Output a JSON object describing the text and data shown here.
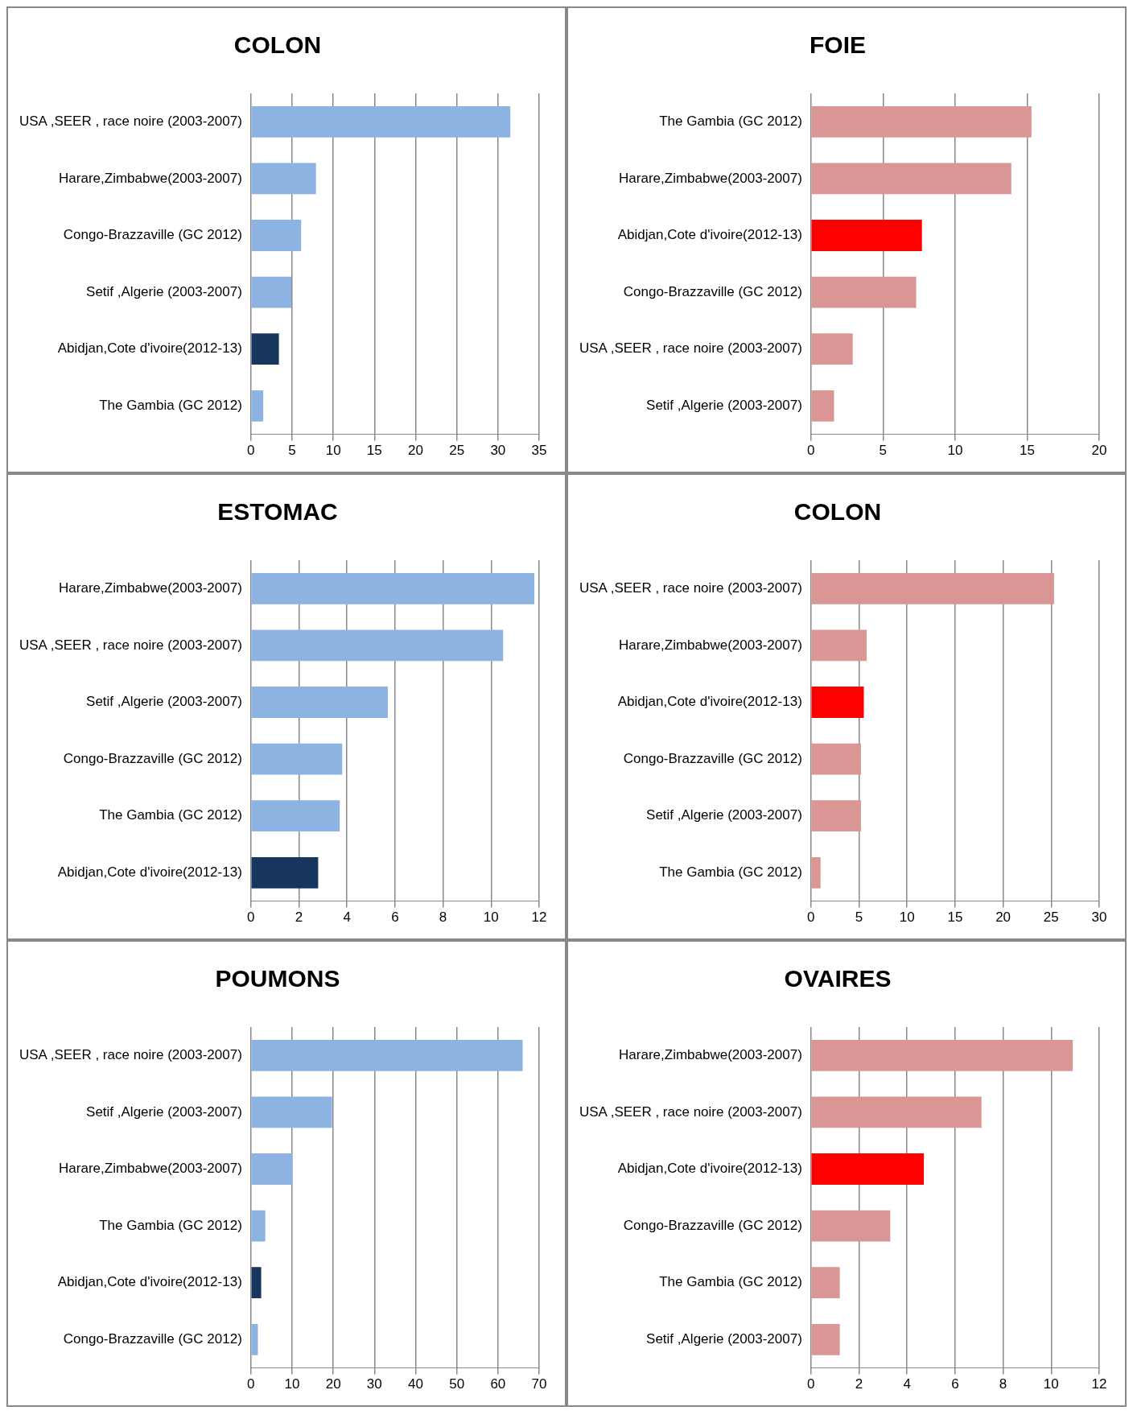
{
  "chart_data": [
    {
      "type": "bar",
      "title": "COLON",
      "orientation": "horizontal",
      "categories": [
        "USA ,SEER , race noire (2003-2007)",
        "Harare,Zimbabwe(2003-2007)",
        "Congo-Brazzaville (GC 2012)",
        "Setif ,Algerie (2003-2007)",
        "Abidjan,Cote d'ivoire(2012-13)",
        "The Gambia (GC 2012)"
      ],
      "values": [
        31.5,
        7.9,
        6.1,
        4.9,
        3.4,
        1.5
      ],
      "colors": [
        "#8db3e2",
        "#8db3e2",
        "#8db3e2",
        "#8db3e2",
        "#17365d",
        "#8db3e2"
      ],
      "xlim": [
        0,
        35
      ],
      "xticks": [
        0,
        5,
        10,
        15,
        20,
        25,
        30,
        35
      ],
      "grid": "x"
    },
    {
      "type": "bar",
      "title": "FOIE",
      "orientation": "horizontal",
      "categories": [
        "The Gambia (GC 2012)",
        "Harare,Zimbabwe(2003-2007)",
        "Abidjan,Cote d'ivoire(2012-13)",
        "Congo-Brazzaville (GC 2012)",
        "USA ,SEER , race noire (2003-2007)",
        "Setif ,Algerie (2003-2007)"
      ],
      "values": [
        15.3,
        13.9,
        7.7,
        7.3,
        2.9,
        1.6
      ],
      "colors": [
        "#d99694",
        "#d99694",
        "#ff0000",
        "#d99694",
        "#d99694",
        "#d99694"
      ],
      "xlim": [
        0,
        20
      ],
      "xticks": [
        0,
        5,
        10,
        15,
        20
      ],
      "grid": "x"
    },
    {
      "type": "bar",
      "title": "ESTOMAC",
      "orientation": "horizontal",
      "categories": [
        "Harare,Zimbabwe(2003-2007)",
        "USA ,SEER , race noire (2003-2007)",
        "Setif ,Algerie (2003-2007)",
        "Congo-Brazzaville (GC 2012)",
        "The Gambia (GC 2012)",
        "Abidjan,Cote d'ivoire(2012-13)"
      ],
      "values": [
        11.8,
        10.5,
        5.7,
        3.8,
        3.7,
        2.8
      ],
      "colors": [
        "#8db3e2",
        "#8db3e2",
        "#8db3e2",
        "#8db3e2",
        "#8db3e2",
        "#17365d"
      ],
      "xlim": [
        0,
        12
      ],
      "xticks": [
        0,
        2,
        4,
        6,
        8,
        10,
        12
      ],
      "grid": "x"
    },
    {
      "type": "bar",
      "title": "COLON",
      "orientation": "horizontal",
      "categories": [
        "USA ,SEER , race noire (2003-2007)",
        "Harare,Zimbabwe(2003-2007)",
        "Abidjan,Cote d'ivoire(2012-13)",
        "Congo-Brazzaville (GC 2012)",
        "Setif ,Algerie (2003-2007)",
        "The Gambia (GC 2012)"
      ],
      "values": [
        25.3,
        5.8,
        5.5,
        5.2,
        5.2,
        1.0
      ],
      "colors": [
        "#d99694",
        "#d99694",
        "#ff0000",
        "#d99694",
        "#d99694",
        "#d99694"
      ],
      "xlim": [
        0,
        30
      ],
      "xticks": [
        0,
        5,
        10,
        15,
        20,
        25,
        30
      ],
      "grid": "x"
    },
    {
      "type": "bar",
      "title": "POUMONS",
      "orientation": "horizontal",
      "categories": [
        "USA ,SEER , race noire (2003-2007)",
        "Setif ,Algerie (2003-2007)",
        "Harare,Zimbabwe(2003-2007)",
        "The Gambia (GC 2012)",
        "Abidjan,Cote d'ivoire(2012-13)",
        "Congo-Brazzaville (GC 2012)"
      ],
      "values": [
        66,
        19.7,
        10.1,
        3.5,
        2.5,
        1.7
      ],
      "colors": [
        "#8db3e2",
        "#8db3e2",
        "#8db3e2",
        "#8db3e2",
        "#17365d",
        "#8db3e2"
      ],
      "xlim": [
        0,
        70
      ],
      "xticks": [
        0,
        10,
        20,
        30,
        40,
        50,
        60,
        70
      ],
      "grid": "x"
    },
    {
      "type": "bar",
      "title": "OVAIRES",
      "orientation": "horizontal",
      "categories": [
        "Harare,Zimbabwe(2003-2007)",
        "USA ,SEER , race noire (2003-2007)",
        "Abidjan,Cote d'ivoire(2012-13)",
        "Congo-Brazzaville (GC 2012)",
        "The Gambia (GC 2012)",
        "Setif ,Algerie (2003-2007)"
      ],
      "values": [
        10.9,
        7.1,
        4.7,
        3.3,
        1.2,
        1.2
      ],
      "colors": [
        "#d99694",
        "#d99694",
        "#ff0000",
        "#d99694",
        "#d99694",
        "#d99694"
      ],
      "xlim": [
        0,
        12
      ],
      "xticks": [
        0,
        2,
        4,
        6,
        8,
        10,
        12
      ],
      "grid": "x"
    }
  ]
}
